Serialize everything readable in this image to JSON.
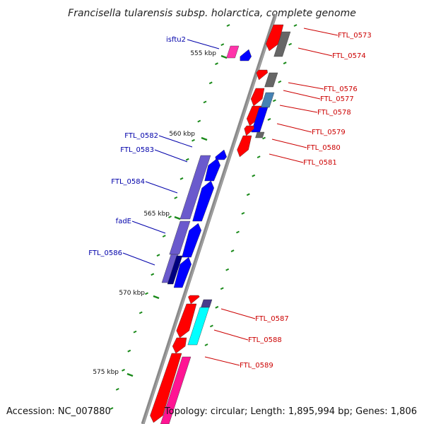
{
  "title": "Francisella tularensis subsp. holarctica, complete genome",
  "footer": {
    "accession": "Accession: NC_007880",
    "summary": "Topology: circular; Length: 1,895,994 bp; Genes: 1,806"
  },
  "ticks": [
    "555 kbp",
    "560 kbp",
    "565 kbp",
    "570 kbp",
    "575 kbp"
  ],
  "labels_reverse": [
    "isftu2",
    "FTL_0582",
    "FTL_0583",
    "FTL_0584",
    "fadE",
    "FTL_0586"
  ],
  "labels_forward": [
    "FTL_0573",
    "FTL_0574",
    "FTL_0576",
    "FTL_0577",
    "FTL_0578",
    "FTL_0579",
    "FTL_0580",
    "FTL_0581",
    "FTL_0587",
    "FTL_0588",
    "FTL_0589"
  ],
  "colors": {
    "backbone": "#8a8a8a",
    "tick": "#1a8a1a",
    "forward_label": "#cc0000",
    "reverse_label": "#0000aa",
    "cds_red": "#ff0000",
    "cds_blue": "#0000ff",
    "gray": "#666666",
    "steel": "#4682b4",
    "purple": "#6a5acd",
    "navy": "#00007f",
    "cyan": "#00ffff",
    "pink": "#ff1493",
    "dark_slate": "#483d8b"
  }
}
